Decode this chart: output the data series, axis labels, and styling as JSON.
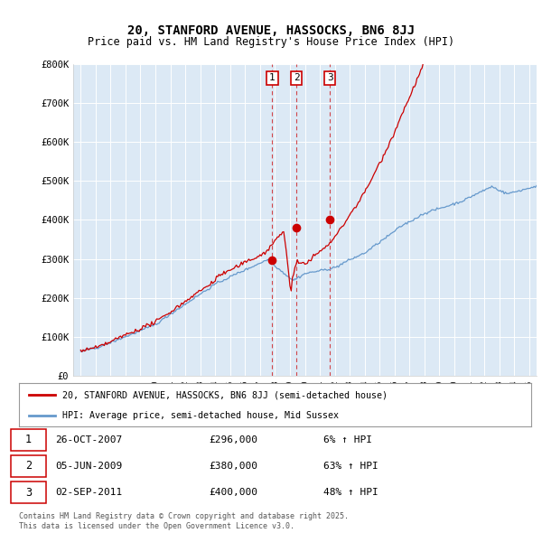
{
  "title_line1": "20, STANFORD AVENUE, HASSOCKS, BN6 8JJ",
  "title_line2": "Price paid vs. HM Land Registry's House Price Index (HPI)",
  "plot_bg_color": "#dce9f5",
  "ylim": [
    0,
    800000
  ],
  "yticks": [
    0,
    100000,
    200000,
    300000,
    400000,
    500000,
    600000,
    700000,
    800000
  ],
  "ytick_labels": [
    "£0",
    "£100K",
    "£200K",
    "£300K",
    "£400K",
    "£500K",
    "£600K",
    "£700K",
    "£800K"
  ],
  "sale_dates": [
    "26-OCT-2007",
    "05-JUN-2009",
    "02-SEP-2011"
  ],
  "sale_prices": [
    296000,
    380000,
    400000
  ],
  "sale_date_nums": [
    2007.82,
    2009.43,
    2011.67
  ],
  "purchase_label": "20, STANFORD AVENUE, HASSOCKS, BN6 8JJ (semi-detached house)",
  "hpi_label": "HPI: Average price, semi-detached house, Mid Sussex",
  "line_color_red": "#cc0000",
  "line_color_blue": "#6699cc",
  "vline_color": "#cc0000",
  "footnote": "Contains HM Land Registry data © Crown copyright and database right 2025.\nThis data is licensed under the Open Government Licence v3.0.",
  "xlim_start": 1994.5,
  "xlim_end": 2025.5,
  "rows": [
    [
      "1",
      "26-OCT-2007",
      "£296,000",
      "6% ↑ HPI"
    ],
    [
      "2",
      "05-JUN-2009",
      "£380,000",
      "63% ↑ HPI"
    ],
    [
      "3",
      "02-SEP-2011",
      "£400,000",
      "48% ↑ HPI"
    ]
  ]
}
